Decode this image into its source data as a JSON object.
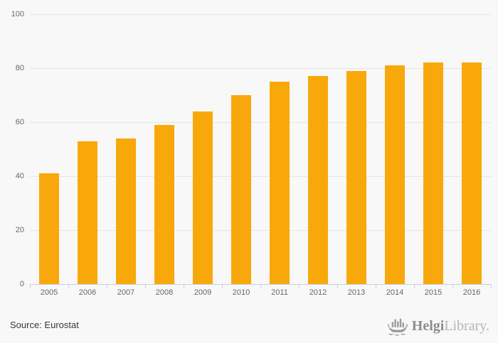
{
  "chart_data": {
    "type": "bar",
    "categories": [
      "2005",
      "2006",
      "2007",
      "2008",
      "2009",
      "2010",
      "2011",
      "2012",
      "2013",
      "2014",
      "2015",
      "2016"
    ],
    "values": [
      41,
      53,
      54,
      59,
      64,
      70,
      75,
      77,
      79,
      81,
      82,
      82
    ],
    "title": "",
    "xlabel": "",
    "ylabel": "",
    "ylim": [
      0,
      100
    ],
    "yticks": [
      0,
      20,
      40,
      60,
      80,
      100
    ],
    "grid": true,
    "legend": false,
    "bar_color": "#f9a80b"
  },
  "footer": {
    "source_label": "Source: Eurostat"
  },
  "branding": {
    "name_bold": "Helgi",
    "name_light": "Library.",
    "icon": "viking-ship-bar-chart-icon"
  },
  "colors": {
    "background": "#f8f8f8",
    "bar": "#f9a80b",
    "gridline": "#e5e5e5",
    "axis": "#c9d0dd",
    "tick_label": "#666666",
    "source_text": "#38383a",
    "logo_dark": "#8d8d8d",
    "logo_light": "#b5b5b5",
    "logo_icon": "#9a9a9a"
  }
}
